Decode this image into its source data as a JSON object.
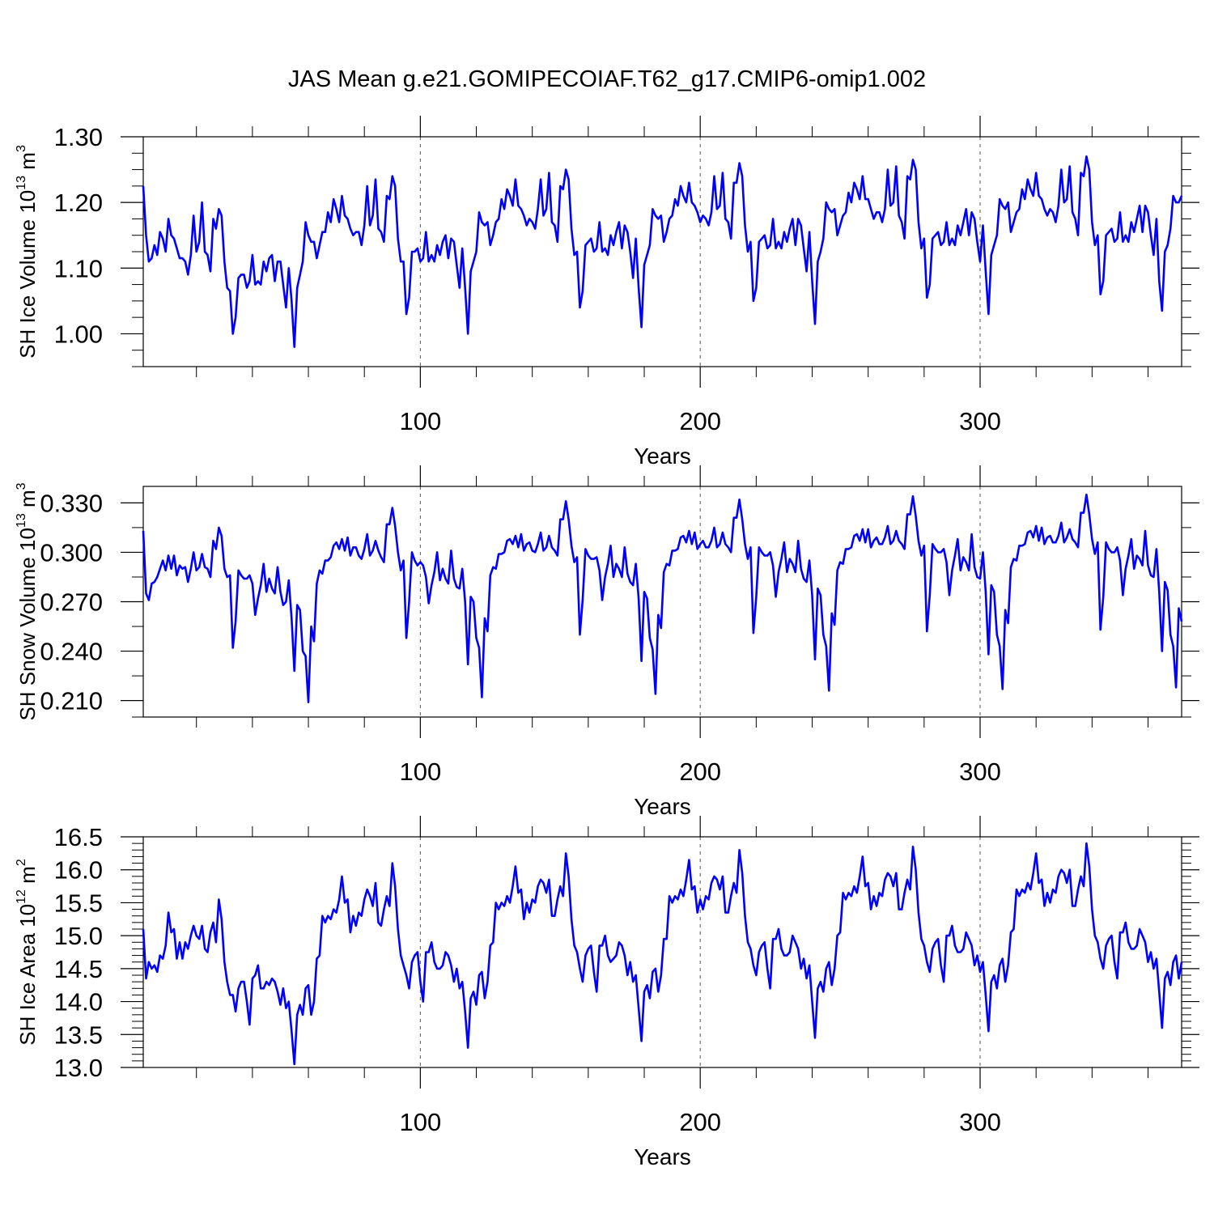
{
  "title": "JAS Mean g.e21.GOMIPECOIAF.T62_g17.CMIP6-omip1.002",
  "colors": {
    "line": "#0000ff",
    "axis": "#000000",
    "refline": "#555555",
    "background": "#ffffff"
  },
  "chart_data": [
    {
      "type": "line",
      "name": "ice-volume",
      "ylabel": {
        "main": "SH Ice Volume 10",
        "sup1": "13",
        "mid": " m",
        "sup2": "3"
      },
      "xlabel": "Years",
      "xlim": [
        1,
        372
      ],
      "ylim": [
        0.95,
        1.3
      ],
      "xticks": [
        100,
        200,
        300
      ],
      "xtick_labels": [
        "100",
        "200",
        "300"
      ],
      "yticks": [
        1.0,
        1.1,
        1.2,
        1.3
      ],
      "ytick_labels": [
        "1.00",
        "1.10",
        "1.20",
        "1.30"
      ],
      "minor_yticks": [
        0.95,
        0.975,
        1.025,
        1.05,
        1.075,
        1.125,
        1.15,
        1.175,
        1.225,
        1.25,
        1.275
      ],
      "ref_lines_x": [
        100,
        200,
        300
      ],
      "x_start": 1,
      "values": [
        1.225,
        1.15,
        1.11,
        1.115,
        1.135,
        1.12,
        1.155,
        1.145,
        1.125,
        1.175,
        1.15,
        1.145,
        1.13,
        1.115,
        1.115,
        1.11,
        1.09,
        1.12,
        1.18,
        1.125,
        1.14,
        1.2,
        1.125,
        1.12,
        1.095,
        1.175,
        1.16,
        1.19,
        1.18,
        1.11,
        1.07,
        1.065,
        1.0,
        1.025,
        1.085,
        1.09,
        1.09,
        1.07,
        1.08,
        1.12,
        1.075,
        1.08,
        1.075,
        1.11,
        1.095,
        1.115,
        1.12,
        1.08,
        1.11,
        1.11,
        1.075,
        1.04,
        1.1,
        1.05,
        0.98,
        1.07,
        1.09,
        1.11,
        1.17,
        1.15,
        1.14,
        1.14,
        1.115,
        1.135,
        1.155,
        1.155,
        1.185,
        1.17,
        1.205,
        1.19,
        1.17,
        1.21,
        1.18,
        1.175,
        1.16,
        1.15,
        1.155,
        1.155,
        1.135,
        1.165,
        1.225,
        1.165,
        1.18,
        1.235,
        1.16,
        1.155,
        1.14,
        1.21,
        1.205,
        1.24,
        1.225,
        1.145,
        1.11,
        1.11,
        1.03,
        1.055,
        1.125,
        1.125,
        1.13,
        1.11,
        1.115,
        1.155,
        1.11,
        1.12,
        1.11,
        1.135,
        1.12,
        1.14,
        1.15,
        1.115,
        1.145,
        1.14,
        1.105,
        1.07,
        1.13,
        1.07,
        1.0,
        1.095,
        1.11,
        1.125,
        1.185,
        1.17,
        1.165,
        1.17,
        1.135,
        1.15,
        1.17,
        1.175,
        1.205,
        1.19,
        1.22,
        1.21,
        1.195,
        1.235,
        1.195,
        1.19,
        1.18,
        1.165,
        1.175,
        1.17,
        1.16,
        1.19,
        1.235,
        1.18,
        1.19,
        1.245,
        1.17,
        1.165,
        1.14,
        1.225,
        1.22,
        1.25,
        1.235,
        1.16,
        1.12,
        1.125,
        1.04,
        1.065,
        1.135,
        1.14,
        1.145,
        1.125,
        1.13,
        1.17,
        1.125,
        1.13,
        1.12,
        1.15,
        1.135,
        1.155,
        1.17,
        1.13,
        1.165,
        1.155,
        1.125,
        1.085,
        1.145,
        1.07,
        1.01,
        1.105,
        1.12,
        1.135,
        1.19,
        1.18,
        1.175,
        1.18,
        1.14,
        1.155,
        1.175,
        1.18,
        1.205,
        1.195,
        1.225,
        1.21,
        1.2,
        1.23,
        1.2,
        1.195,
        1.185,
        1.17,
        1.18,
        1.175,
        1.165,
        1.185,
        1.24,
        1.19,
        1.195,
        1.245,
        1.175,
        1.17,
        1.145,
        1.23,
        1.23,
        1.26,
        1.24,
        1.165,
        1.125,
        1.14,
        1.05,
        1.07,
        1.14,
        1.145,
        1.15,
        1.13,
        1.135,
        1.175,
        1.13,
        1.14,
        1.13,
        1.155,
        1.14,
        1.16,
        1.175,
        1.135,
        1.175,
        1.165,
        1.13,
        1.095,
        1.155,
        1.08,
        1.015,
        1.11,
        1.125,
        1.145,
        1.2,
        1.19,
        1.185,
        1.19,
        1.15,
        1.165,
        1.18,
        1.185,
        1.215,
        1.2,
        1.23,
        1.22,
        1.205,
        1.24,
        1.205,
        1.205,
        1.19,
        1.175,
        1.185,
        1.185,
        1.17,
        1.19,
        1.25,
        1.195,
        1.2,
        1.255,
        1.18,
        1.17,
        1.145,
        1.24,
        1.235,
        1.265,
        1.25,
        1.17,
        1.13,
        1.145,
        1.055,
        1.075,
        1.145,
        1.15,
        1.155,
        1.135,
        1.14,
        1.17,
        1.135,
        1.145,
        1.135,
        1.165,
        1.15,
        1.17,
        1.19,
        1.15,
        1.185,
        1.175,
        1.14,
        1.11,
        1.165,
        1.095,
        1.03,
        1.12,
        1.135,
        1.15,
        1.205,
        1.195,
        1.19,
        1.2,
        1.155,
        1.17,
        1.185,
        1.19,
        1.22,
        1.205,
        1.235,
        1.22,
        1.21,
        1.245,
        1.21,
        1.205,
        1.19,
        1.18,
        1.19,
        1.185,
        1.17,
        1.195,
        1.25,
        1.2,
        1.205,
        1.255,
        1.185,
        1.175,
        1.15,
        1.245,
        1.24,
        1.27,
        1.25,
        1.17,
        1.135,
        1.15,
        1.06,
        1.08,
        1.15,
        1.155,
        1.16,
        1.14,
        1.145,
        1.185,
        1.14,
        1.15,
        1.14,
        1.17,
        1.155,
        1.175,
        1.195,
        1.155,
        1.195,
        1.185,
        1.15,
        1.12,
        1.175,
        1.08,
        1.035,
        1.125,
        1.135,
        1.16,
        1.21,
        1.2,
        1.2,
        1.21
      ]
    },
    {
      "type": "line",
      "name": "snow-volume",
      "ylabel": {
        "main": "SH Snow Volume 10",
        "sup1": "13",
        "mid": " m",
        "sup2": "3"
      },
      "xlabel": "Years",
      "xlim": [
        1,
        372
      ],
      "ylim": [
        0.2,
        0.34
      ],
      "xticks": [
        100,
        200,
        300
      ],
      "xtick_labels": [
        "100",
        "200",
        "300"
      ],
      "yticks": [
        0.21,
        0.24,
        0.27,
        0.3,
        0.33
      ],
      "ytick_labels": [
        "0.210",
        "0.240",
        "0.270",
        "0.300",
        "0.330"
      ],
      "minor_yticks": [
        0.2,
        0.225,
        0.255,
        0.285,
        0.315
      ],
      "ref_lines_x": [
        100,
        200,
        300
      ],
      "x_start": 1,
      "values": [
        0.313,
        0.275,
        0.271,
        0.281,
        0.282,
        0.285,
        0.29,
        0.295,
        0.289,
        0.298,
        0.29,
        0.298,
        0.286,
        0.292,
        0.29,
        0.291,
        0.282,
        0.29,
        0.3,
        0.289,
        0.291,
        0.299,
        0.291,
        0.29,
        0.285,
        0.307,
        0.302,
        0.315,
        0.31,
        0.29,
        0.285,
        0.286,
        0.242,
        0.258,
        0.289,
        0.286,
        0.284,
        0.284,
        0.286,
        0.281,
        0.262,
        0.272,
        0.28,
        0.293,
        0.276,
        0.284,
        0.278,
        0.275,
        0.291,
        0.276,
        0.268,
        0.27,
        0.283,
        0.26,
        0.228,
        0.268,
        0.265,
        0.24,
        0.237,
        0.209,
        0.255,
        0.246,
        0.281,
        0.289,
        0.287,
        0.295,
        0.295,
        0.297,
        0.304,
        0.306,
        0.302,
        0.308,
        0.301,
        0.309,
        0.298,
        0.303,
        0.303,
        0.298,
        0.296,
        0.302,
        0.311,
        0.298,
        0.301,
        0.307,
        0.301,
        0.297,
        0.294,
        0.317,
        0.317,
        0.327,
        0.316,
        0.3,
        0.289,
        0.295,
        0.248,
        0.27,
        0.3,
        0.295,
        0.292,
        0.294,
        0.292,
        0.285,
        0.269,
        0.28,
        0.288,
        0.3,
        0.283,
        0.29,
        0.284,
        0.281,
        0.301,
        0.284,
        0.279,
        0.278,
        0.29,
        0.27,
        0.232,
        0.273,
        0.27,
        0.248,
        0.242,
        0.212,
        0.26,
        0.252,
        0.286,
        0.291,
        0.29,
        0.299,
        0.299,
        0.3,
        0.307,
        0.308,
        0.305,
        0.31,
        0.303,
        0.311,
        0.301,
        0.305,
        0.306,
        0.301,
        0.3,
        0.305,
        0.312,
        0.301,
        0.303,
        0.31,
        0.303,
        0.301,
        0.298,
        0.32,
        0.32,
        0.331,
        0.32,
        0.304,
        0.294,
        0.297,
        0.25,
        0.271,
        0.302,
        0.298,
        0.296,
        0.296,
        0.297,
        0.289,
        0.271,
        0.285,
        0.293,
        0.304,
        0.285,
        0.293,
        0.29,
        0.285,
        0.303,
        0.287,
        0.282,
        0.28,
        0.293,
        0.272,
        0.234,
        0.276,
        0.272,
        0.248,
        0.241,
        0.214,
        0.262,
        0.254,
        0.288,
        0.293,
        0.292,
        0.301,
        0.301,
        0.302,
        0.309,
        0.31,
        0.306,
        0.313,
        0.305,
        0.312,
        0.302,
        0.305,
        0.307,
        0.303,
        0.303,
        0.307,
        0.315,
        0.303,
        0.305,
        0.312,
        0.305,
        0.303,
        0.3,
        0.321,
        0.321,
        0.332,
        0.32,
        0.305,
        0.296,
        0.303,
        0.251,
        0.273,
        0.303,
        0.3,
        0.298,
        0.298,
        0.3,
        0.292,
        0.273,
        0.288,
        0.296,
        0.306,
        0.288,
        0.296,
        0.293,
        0.288,
        0.307,
        0.29,
        0.284,
        0.282,
        0.295,
        0.274,
        0.235,
        0.278,
        0.274,
        0.25,
        0.243,
        0.216,
        0.263,
        0.256,
        0.289,
        0.294,
        0.293,
        0.302,
        0.302,
        0.303,
        0.31,
        0.311,
        0.307,
        0.314,
        0.306,
        0.314,
        0.303,
        0.307,
        0.309,
        0.305,
        0.305,
        0.309,
        0.316,
        0.305,
        0.307,
        0.313,
        0.307,
        0.305,
        0.302,
        0.323,
        0.323,
        0.334,
        0.322,
        0.307,
        0.298,
        0.304,
        0.252,
        0.274,
        0.305,
        0.302,
        0.3,
        0.3,
        0.302,
        0.294,
        0.274,
        0.289,
        0.298,
        0.308,
        0.289,
        0.297,
        0.294,
        0.289,
        0.311,
        0.291,
        0.285,
        0.284,
        0.3,
        0.276,
        0.238,
        0.28,
        0.276,
        0.25,
        0.243,
        0.217,
        0.265,
        0.257,
        0.291,
        0.296,
        0.295,
        0.304,
        0.304,
        0.305,
        0.312,
        0.313,
        0.309,
        0.316,
        0.307,
        0.315,
        0.305,
        0.309,
        0.31,
        0.306,
        0.306,
        0.31,
        0.318,
        0.306,
        0.309,
        0.314,
        0.308,
        0.306,
        0.303,
        0.324,
        0.324,
        0.335,
        0.323,
        0.308,
        0.299,
        0.306,
        0.253,
        0.273,
        0.306,
        0.302,
        0.3,
        0.3,
        0.303,
        0.295,
        0.274,
        0.29,
        0.298,
        0.308,
        0.29,
        0.298,
        0.296,
        0.292,
        0.313,
        0.292,
        0.286,
        0.285,
        0.302,
        0.276,
        0.24,
        0.282,
        0.277,
        0.25,
        0.243,
        0.218,
        0.266,
        0.258
      ]
    },
    {
      "type": "line",
      "name": "ice-area",
      "ylabel": {
        "main": "SH Ice Area 10",
        "sup1": "12",
        "mid": " m",
        "sup2": "2"
      },
      "xlabel": "Years",
      "xlim": [
        1,
        372
      ],
      "ylim": [
        13.0,
        16.5
      ],
      "xticks": [
        100,
        200,
        300
      ],
      "xtick_labels": [
        "100",
        "200",
        "300"
      ],
      "yticks": [
        13.0,
        13.5,
        14.0,
        14.5,
        15.0,
        15.5,
        16.0,
        16.5
      ],
      "ytick_labels": [
        "13.0",
        "13.5",
        "14.0",
        "14.5",
        "15.0",
        "15.5",
        "16.0",
        "16.5"
      ],
      "minor_yticks": [
        13.1,
        13.2,
        13.3,
        13.4,
        13.6,
        13.7,
        13.8,
        13.9,
        14.1,
        14.2,
        14.3,
        14.4,
        14.6,
        14.7,
        14.8,
        14.9,
        15.1,
        15.2,
        15.3,
        15.4,
        15.6,
        15.7,
        15.8,
        15.9,
        16.1,
        16.2,
        16.3,
        16.4
      ],
      "ref_lines_x": [
        100,
        200,
        300
      ],
      "x_start": 1,
      "values": [
        15.1,
        14.35,
        14.6,
        14.5,
        14.55,
        14.45,
        14.7,
        14.65,
        14.85,
        15.35,
        15.05,
        15.1,
        14.65,
        14.9,
        14.65,
        14.9,
        14.8,
        15.0,
        15.15,
        15.0,
        14.95,
        15.15,
        14.8,
        14.75,
        15.05,
        15.2,
        14.9,
        15.55,
        15.25,
        14.6,
        14.3,
        14.1,
        14.1,
        13.85,
        14.2,
        14.3,
        14.3,
        14.0,
        13.65,
        14.35,
        14.4,
        14.55,
        14.2,
        14.2,
        14.3,
        14.25,
        14.35,
        14.3,
        14.15,
        13.95,
        14.2,
        13.9,
        14.0,
        13.55,
        13.05,
        13.8,
        13.95,
        13.8,
        14.2,
        14.25,
        13.8,
        14.0,
        14.65,
        14.7,
        15.3,
        15.2,
        15.3,
        15.25,
        15.4,
        15.35,
        15.55,
        15.9,
        15.5,
        15.55,
        15.05,
        15.3,
        15.15,
        15.35,
        15.3,
        15.55,
        15.7,
        15.6,
        15.45,
        15.8,
        15.2,
        15.15,
        15.4,
        15.6,
        15.45,
        16.1,
        15.75,
        15.1,
        14.7,
        14.55,
        14.4,
        14.2,
        14.6,
        14.7,
        14.75,
        14.3,
        14.0,
        14.75,
        14.75,
        14.9,
        14.6,
        14.5,
        14.5,
        14.55,
        14.75,
        14.7,
        14.55,
        14.3,
        14.5,
        14.2,
        14.3,
        13.85,
        13.3,
        14.05,
        14.15,
        13.95,
        14.4,
        14.45,
        14.05,
        14.3,
        14.85,
        14.9,
        15.5,
        15.4,
        15.5,
        15.45,
        15.6,
        15.5,
        15.75,
        16.05,
        15.65,
        15.7,
        15.25,
        15.5,
        15.35,
        15.55,
        15.5,
        15.75,
        15.85,
        15.8,
        15.65,
        15.85,
        15.3,
        15.3,
        15.55,
        15.75,
        15.6,
        16.25,
        15.9,
        15.25,
        14.85,
        14.75,
        14.5,
        14.3,
        14.7,
        14.8,
        14.85,
        14.45,
        14.15,
        14.85,
        14.85,
        15.0,
        14.7,
        14.6,
        14.65,
        14.7,
        14.9,
        14.85,
        14.7,
        14.4,
        14.6,
        14.3,
        14.4,
        13.9,
        13.4,
        14.15,
        14.25,
        14.05,
        14.45,
        14.5,
        14.15,
        14.4,
        14.95,
        14.95,
        15.6,
        15.5,
        15.6,
        15.55,
        15.7,
        15.6,
        15.85,
        16.15,
        15.7,
        15.75,
        15.35,
        15.55,
        15.4,
        15.6,
        15.55,
        15.8,
        15.9,
        15.85,
        15.7,
        15.9,
        15.35,
        15.35,
        15.6,
        15.8,
        15.65,
        16.3,
        15.95,
        15.3,
        14.9,
        14.8,
        14.55,
        14.4,
        14.75,
        14.85,
        14.9,
        14.5,
        14.2,
        14.95,
        14.95,
        15.1,
        14.8,
        14.7,
        14.7,
        14.75,
        15.0,
        14.9,
        14.8,
        14.5,
        14.65,
        14.35,
        14.55,
        14.0,
        13.45,
        14.2,
        14.3,
        14.15,
        14.5,
        14.6,
        14.25,
        14.5,
        15.0,
        15.05,
        15.65,
        15.55,
        15.65,
        15.6,
        15.75,
        15.65,
        15.9,
        16.2,
        15.75,
        15.8,
        15.4,
        15.6,
        15.45,
        15.65,
        15.6,
        15.85,
        15.95,
        15.9,
        15.75,
        15.95,
        15.4,
        15.4,
        15.65,
        15.85,
        15.7,
        16.35,
        16.0,
        15.35,
        14.95,
        14.85,
        14.6,
        14.45,
        14.8,
        14.9,
        14.95,
        14.55,
        14.3,
        15.0,
        15.0,
        15.15,
        14.85,
        14.75,
        14.75,
        14.8,
        15.05,
        14.95,
        14.85,
        14.55,
        14.7,
        14.45,
        14.6,
        14.1,
        13.55,
        14.3,
        14.4,
        14.2,
        14.55,
        14.65,
        14.3,
        14.55,
        15.05,
        15.1,
        15.7,
        15.6,
        15.7,
        15.65,
        15.8,
        15.7,
        15.95,
        16.25,
        15.8,
        15.85,
        15.45,
        15.65,
        15.5,
        15.7,
        15.65,
        15.9,
        16.0,
        15.95,
        15.8,
        16.0,
        15.45,
        15.45,
        15.7,
        15.9,
        15.75,
        16.4,
        16.05,
        15.4,
        15.0,
        14.9,
        14.65,
        14.5,
        14.85,
        14.95,
        15.0,
        14.6,
        14.35,
        15.05,
        15.05,
        15.2,
        14.9,
        14.8,
        14.8,
        14.85,
        15.1,
        15.0,
        14.9,
        14.6,
        14.75,
        14.5,
        14.65,
        14.15,
        13.6,
        14.35,
        14.45,
        14.25,
        14.6,
        14.7,
        14.35,
        14.6
      ]
    }
  ]
}
